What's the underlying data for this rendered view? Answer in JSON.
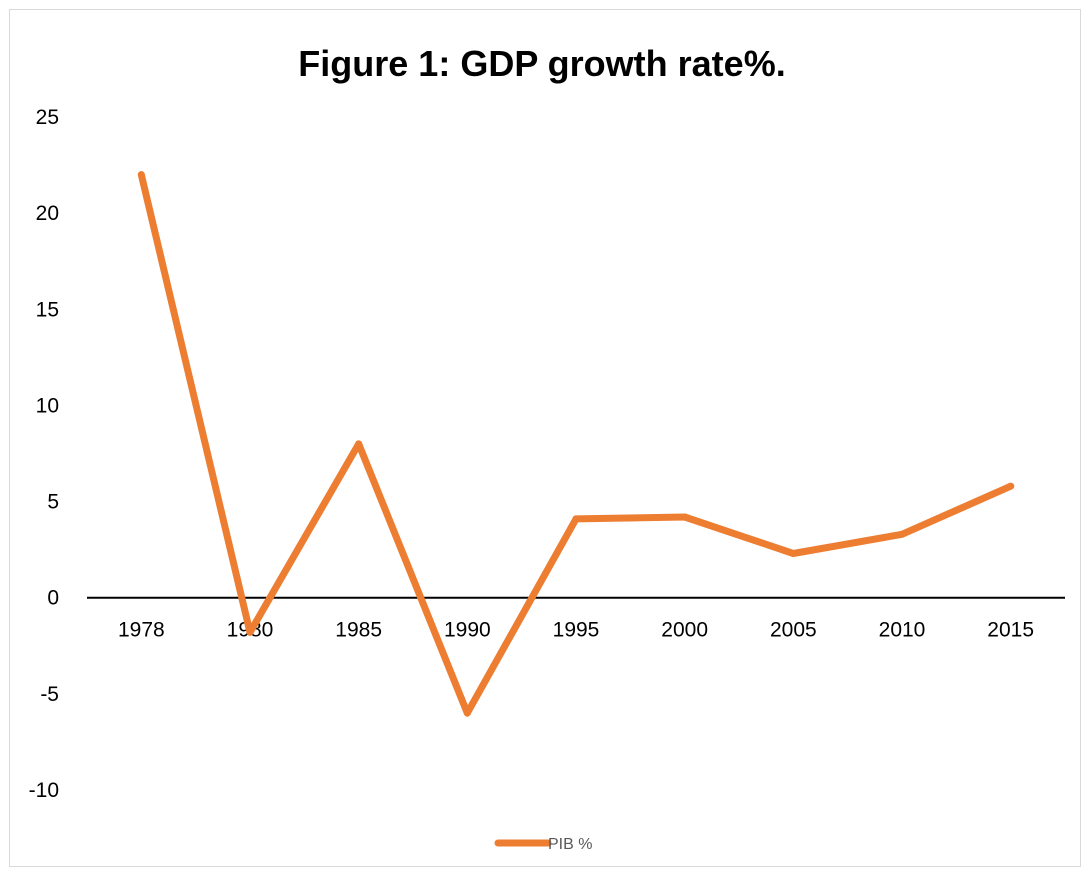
{
  "chart_data": {
    "type": "line",
    "title": "Figure 1: GDP growth rate%.",
    "xlabel": "",
    "ylabel": "",
    "categories": [
      "1978",
      "1980",
      "1985",
      "1990",
      "1995",
      "2000",
      "2005",
      "2010",
      "2015"
    ],
    "series": [
      {
        "name": "PIB %",
        "values": [
          22,
          -1.8,
          8,
          -6,
          4.1,
          4.2,
          2.3,
          3.3,
          5.8
        ]
      }
    ],
    "ylim": [
      -10,
      25
    ],
    "yticks": [
      "25",
      "20",
      "15",
      "10",
      "5",
      "0",
      "-5",
      "-10"
    ],
    "ytick_values": [
      25,
      20,
      15,
      10,
      5,
      0,
      -5,
      -10
    ],
    "grid": false,
    "legend_position": "bottom",
    "colors": {
      "line": "#ED7D31",
      "axis": "#000000",
      "text": "#000000",
      "legend_text": "#595959"
    }
  }
}
